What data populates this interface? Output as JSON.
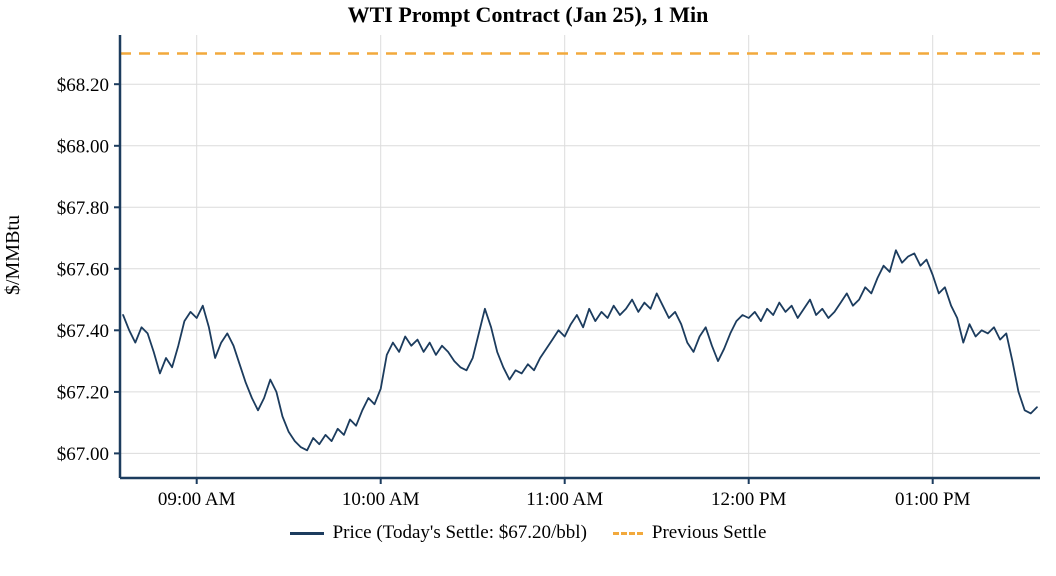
{
  "chart_data": {
    "type": "line",
    "title": "WTI Prompt Contract (Jan 25), 1 Min",
    "xlabel": "",
    "ylabel": "$/MMBtu",
    "xlim": [
      515,
      815
    ],
    "ylim": [
      66.92,
      68.36
    ],
    "grid": true,
    "legend_position": "bottom",
    "grid_color": "#dcdcdc",
    "axis_color": "#1c3c5e",
    "x_ticks": [
      {
        "value": 540,
        "label": "09:00 AM"
      },
      {
        "value": 600,
        "label": "10:00 AM"
      },
      {
        "value": 660,
        "label": "11:00 AM"
      },
      {
        "value": 720,
        "label": "12:00 PM"
      },
      {
        "value": 780,
        "label": "01:00 PM"
      }
    ],
    "y_ticks": [
      {
        "value": 67.0,
        "label": "$67.00"
      },
      {
        "value": 67.2,
        "label": "$67.20"
      },
      {
        "value": 67.4,
        "label": "$67.40"
      },
      {
        "value": 67.6,
        "label": "$67.60"
      },
      {
        "value": 67.8,
        "label": "$67.80"
      },
      {
        "value": 68.0,
        "label": "$68.00"
      },
      {
        "value": 68.2,
        "label": "$68.20"
      }
    ],
    "legend": [
      {
        "label": "Price (Today's Settle: $67.20/bbl)",
        "style": "solid",
        "color": "#1c3c5e"
      },
      {
        "label": "Previous Settle",
        "style": "dashed",
        "color": "#f2a93c"
      }
    ],
    "today_settle": 67.2,
    "previous_settle": 68.3,
    "previous_settle_line": {
      "value": 68.3,
      "color": "#f2a93c",
      "dash": "11 8"
    },
    "price_series": {
      "name": "Price",
      "color": "#1c3c5e",
      "x_unit": "minutes_since_midnight",
      "x_start_minutes": 516,
      "x_step_minutes": 2,
      "values": [
        67.45,
        67.4,
        67.36,
        67.41,
        67.39,
        67.33,
        67.26,
        67.31,
        67.28,
        67.35,
        67.43,
        67.46,
        67.44,
        67.48,
        67.41,
        67.31,
        67.36,
        67.39,
        67.35,
        67.29,
        67.23,
        67.18,
        67.14,
        67.18,
        67.24,
        67.2,
        67.12,
        67.07,
        67.04,
        67.02,
        67.01,
        67.05,
        67.03,
        67.06,
        67.04,
        67.08,
        67.06,
        67.11,
        67.09,
        67.14,
        67.18,
        67.16,
        67.21,
        67.32,
        67.36,
        67.33,
        67.38,
        67.35,
        67.37,
        67.33,
        67.36,
        67.32,
        67.35,
        67.33,
        67.3,
        67.28,
        67.27,
        67.31,
        67.39,
        67.47,
        67.41,
        67.33,
        67.28,
        67.24,
        67.27,
        67.26,
        67.29,
        67.27,
        67.31,
        67.34,
        67.37,
        67.4,
        67.38,
        67.42,
        67.45,
        67.41,
        67.47,
        67.43,
        67.46,
        67.44,
        67.48,
        67.45,
        67.47,
        67.5,
        67.46,
        67.49,
        67.47,
        67.52,
        67.48,
        67.44,
        67.46,
        67.42,
        67.36,
        67.33,
        67.38,
        67.41,
        67.35,
        67.3,
        67.34,
        67.39,
        67.43,
        67.45,
        67.44,
        67.46,
        67.43,
        67.47,
        67.45,
        67.49,
        67.46,
        67.48,
        67.44,
        67.47,
        67.5,
        67.45,
        67.47,
        67.44,
        67.46,
        67.49,
        67.52,
        67.48,
        67.5,
        67.54,
        67.52,
        67.57,
        67.61,
        67.59,
        67.66,
        67.62,
        67.64,
        67.65,
        67.61,
        67.63,
        67.58,
        67.52,
        67.54,
        67.48,
        67.44,
        67.36,
        67.42,
        67.38,
        67.4,
        67.39,
        67.41,
        67.37,
        67.39,
        67.3,
        67.2,
        67.14,
        67.13,
        67.15
      ]
    }
  }
}
